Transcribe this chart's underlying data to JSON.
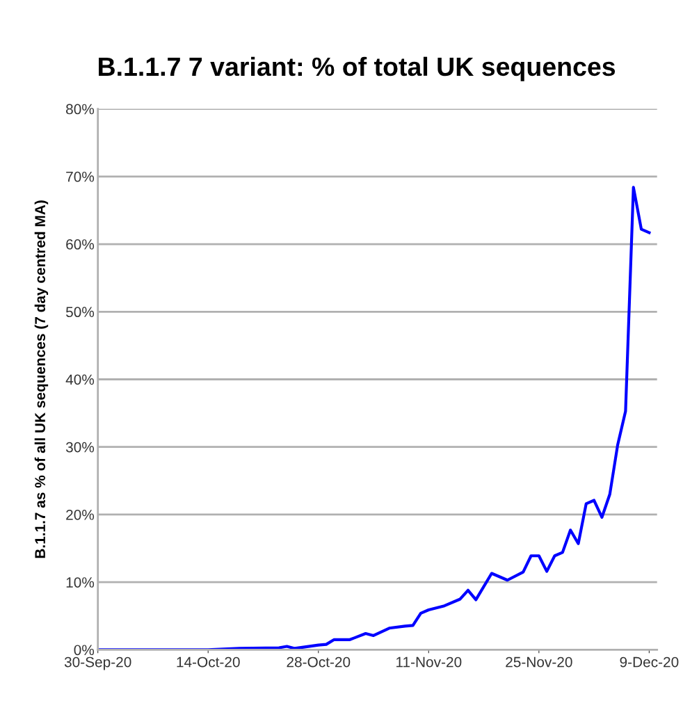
{
  "chart_data": {
    "type": "line",
    "title": "B.1.1.7 7 variant: % of total UK sequences",
    "ylabel": "B.1.1.7 as % of all UK sequences (7 day centred MA)",
    "x": [
      "2020-09-30",
      "2020-10-07",
      "2020-10-14",
      "2020-10-18",
      "2020-10-23",
      "2020-10-24",
      "2020-10-25",
      "2020-10-28",
      "2020-10-29",
      "2020-10-30",
      "2020-11-01",
      "2020-11-03",
      "2020-11-04",
      "2020-11-06",
      "2020-11-08",
      "2020-11-09",
      "2020-11-10",
      "2020-11-11",
      "2020-11-13",
      "2020-11-15",
      "2020-11-16",
      "2020-11-17",
      "2020-11-19",
      "2020-11-21",
      "2020-11-23",
      "2020-11-24",
      "2020-11-25",
      "2020-11-26",
      "2020-11-27",
      "2020-11-28",
      "2020-11-29",
      "2020-11-30",
      "2020-12-01",
      "2020-12-02",
      "2020-12-03",
      "2020-12-04",
      "2020-12-05",
      "2020-12-06",
      "2020-12-07",
      "2020-12-08",
      "2020-12-09"
    ],
    "series": [
      {
        "color": "#0000ff",
        "values": [
          0,
          0,
          0,
          0.2,
          0.3,
          0.5,
          0.2,
          0.7,
          0.8,
          1.5,
          1.5,
          2.4,
          2.1,
          3.2,
          3.5,
          3.6,
          5.4,
          5.9,
          6.5,
          7.5,
          8.8,
          7.4,
          11.3,
          10.3,
          11.5,
          13.9,
          13.9,
          11.6,
          13.9,
          14.4,
          17.7,
          15.7,
          21.6,
          22.1,
          19.6,
          23.0,
          30.3,
          35.3,
          68.4,
          62.2,
          61.7
        ]
      }
    ],
    "xlim": [
      "2020-09-30",
      "2020-12-10"
    ],
    "xticks": [
      {
        "value": "2020-09-30",
        "label": "30-Sep-20"
      },
      {
        "value": "2020-10-14",
        "label": "14-Oct-20"
      },
      {
        "value": "2020-10-28",
        "label": "28-Oct-20"
      },
      {
        "value": "2020-11-11",
        "label": "11-Nov-20"
      },
      {
        "value": "2020-11-25",
        "label": "25-Nov-20"
      },
      {
        "value": "2020-12-09",
        "label": "9-Dec-20"
      }
    ],
    "ylim": [
      0,
      80
    ],
    "yticks": [
      {
        "value": 0,
        "label": "0%"
      },
      {
        "value": 10,
        "label": "10%"
      },
      {
        "value": 20,
        "label": "20%"
      },
      {
        "value": 30,
        "label": "30%"
      },
      {
        "value": 40,
        "label": "40%"
      },
      {
        "value": 50,
        "label": "50%"
      },
      {
        "value": 60,
        "label": "60%"
      },
      {
        "value": 70,
        "label": "70%"
      },
      {
        "value": 80,
        "label": "80%"
      }
    ],
    "grid": "y",
    "marker": "none",
    "line_style": "solid",
    "legend": false
  }
}
